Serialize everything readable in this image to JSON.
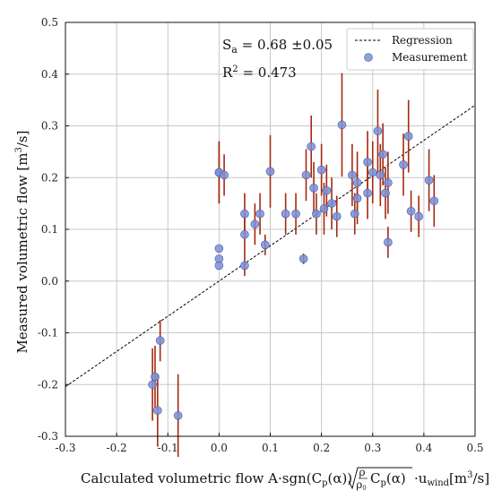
{
  "chart_data": {
    "type": "scatter",
    "title": "",
    "xlabel": {
      "prefix": "Calculated volumetric flow A·sgn(C",
      "p_sub": "p",
      "alpha1": "(α))",
      "sqrt_num": "ρ",
      "sqrt_den": "ρ",
      "sqrt_den_sub": "0",
      "sqrt_tail_c": "C",
      "sqrt_tail_p": "p",
      "sqrt_tail_alpha": "(α)",
      "u": "·u",
      "u_sub": "wind",
      "unit": "[m",
      "unit_sup": "3",
      "unit_end": "/s]"
    },
    "ylabel": {
      "main": "Measured volumetric flow [m",
      "sup": "3",
      "end": "/s]"
    },
    "xlim": [
      -0.3,
      0.5
    ],
    "ylim": [
      -0.3,
      0.5
    ],
    "xticks": [
      "-0.3",
      "-0.2",
      "-0.1",
      "0.0",
      "0.1",
      "0.2",
      "0.3",
      "0.4",
      "0.5"
    ],
    "yticks": [
      "-0.3",
      "-0.2",
      "-0.1",
      "0.0",
      "0.1",
      "0.2",
      "0.3",
      "0.4",
      "0.5"
    ],
    "grid": true,
    "legend_position": "top-right",
    "annotations": {
      "sa_label": "S",
      "sa_sub": "a",
      "sa_value": " = 0.68 ±0.05",
      "r2_label": "R",
      "r2_sup": "2",
      "r2_value": " = 0.473"
    },
    "series": [
      {
        "name": "Regression",
        "kind": "line",
        "color": "#000000",
        "points": [
          [
            -0.3,
            -0.204
          ],
          [
            0.5,
            0.34
          ]
        ]
      },
      {
        "name": "Measurement",
        "kind": "scatter",
        "color": "#7b8fd6",
        "error_color": "#a32a10",
        "points": [
          [
            0.0,
            0.21,
            0.06
          ],
          [
            0.0,
            0.21,
            0.06
          ],
          [
            0.01,
            0.205,
            0.04
          ],
          [
            0.0,
            0.063,
            0.0
          ],
          [
            0.0,
            0.043,
            0.0
          ],
          [
            0.0,
            0.03,
            0.0
          ],
          [
            0.05,
            0.13,
            0.04
          ],
          [
            0.05,
            0.09,
            0.04
          ],
          [
            0.05,
            0.03,
            0.02
          ],
          [
            0.07,
            0.11,
            0.04
          ],
          [
            0.08,
            0.13,
            0.04
          ],
          [
            0.09,
            0.07,
            0.02
          ],
          [
            0.1,
            0.212,
            0.07
          ],
          [
            0.13,
            0.13,
            0.04
          ],
          [
            0.15,
            0.13,
            0.04
          ],
          [
            0.165,
            0.043,
            0.01
          ],
          [
            0.17,
            0.205,
            0.05
          ],
          [
            0.18,
            0.26,
            0.06
          ],
          [
            0.185,
            0.18,
            0.05
          ],
          [
            0.19,
            0.13,
            0.04
          ],
          [
            0.2,
            0.215,
            0.05
          ],
          [
            0.205,
            0.14,
            0.05
          ],
          [
            0.21,
            0.175,
            0.05
          ],
          [
            0.22,
            0.15,
            0.05
          ],
          [
            0.23,
            0.125,
            0.04
          ],
          [
            0.24,
            0.302,
            0.1
          ],
          [
            0.26,
            0.205,
            0.06
          ],
          [
            0.265,
            0.13,
            0.04
          ],
          [
            0.27,
            0.16,
            0.05
          ],
          [
            0.27,
            0.19,
            0.06
          ],
          [
            0.29,
            0.17,
            0.05
          ],
          [
            0.29,
            0.23,
            0.06
          ],
          [
            0.3,
            0.21,
            0.06
          ],
          [
            0.31,
            0.29,
            0.08
          ],
          [
            0.315,
            0.205,
            0.06
          ],
          [
            0.32,
            0.245,
            0.06
          ],
          [
            0.325,
            0.17,
            0.05
          ],
          [
            0.33,
            0.19,
            0.06
          ],
          [
            0.33,
            0.075,
            0.03
          ],
          [
            0.36,
            0.225,
            0.06
          ],
          [
            0.37,
            0.28,
            0.07
          ],
          [
            0.375,
            0.135,
            0.04
          ],
          [
            0.39,
            0.125,
            0.04
          ],
          [
            0.41,
            0.195,
            0.06
          ],
          [
            0.42,
            0.155,
            0.05
          ],
          [
            -0.13,
            -0.2,
            0.07
          ],
          [
            -0.125,
            -0.185,
            0.06
          ],
          [
            -0.12,
            -0.25,
            0.07
          ],
          [
            -0.115,
            -0.115,
            0.04
          ],
          [
            -0.08,
            -0.26,
            0.08
          ]
        ]
      }
    ]
  }
}
